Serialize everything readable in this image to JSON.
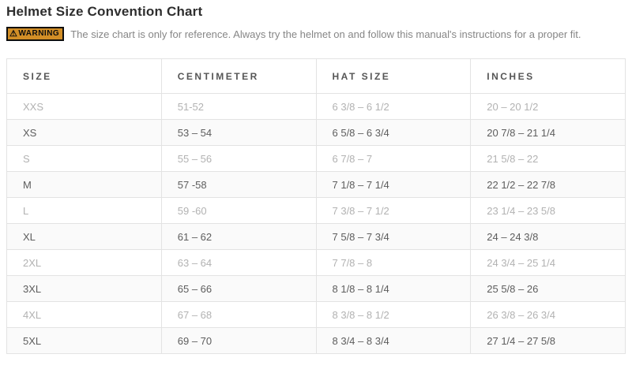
{
  "page": {
    "title": "Helmet Size Convention Chart",
    "warning": {
      "badge_label": "WARNING",
      "triangle_icon": "⚠",
      "text": "The size chart is only for reference. Always try the helmet on and follow this manual's instructions for a proper fit."
    }
  },
  "colors": {
    "badge_bg": "#d28e26",
    "badge_border": "#0d0d0d",
    "header_text": "#565656",
    "row_light_text": "#b2b2b2",
    "row_dark_text": "#5d5d5d",
    "stripe_bg": "#fafafa",
    "table_border": "#e3e3e3"
  },
  "table": {
    "headers": [
      "SIZE",
      "CENTIMETER",
      "HAT SIZE",
      "INCHES"
    ],
    "rows": [
      {
        "size": "XXS",
        "centimeter": "51-52",
        "hat_size": "6 3/8 – 6 1/2",
        "inches": "20 – 20 1/2"
      },
      {
        "size": "XS",
        "centimeter": "53 – 54",
        "hat_size": "6 5/8 – 6 3/4",
        "inches": "20 7/8 – 21 1/4"
      },
      {
        "size": "S",
        "centimeter": "55 – 56",
        "hat_size": "6 7/8 – 7",
        "inches": "21 5/8 – 22"
      },
      {
        "size": "M",
        "centimeter": "57 -58",
        "hat_size": "7 1/8 – 7 1/4",
        "inches": "22 1/2 – 22 7/8"
      },
      {
        "size": "L",
        "centimeter": "59 -60",
        "hat_size": "7 3/8 – 7 1/2",
        "inches": "23 1/4 – 23 5/8"
      },
      {
        "size": "XL",
        "centimeter": "61 – 62",
        "hat_size": "7 5/8 – 7 3/4",
        "inches": "24 – 24 3/8"
      },
      {
        "size": "2XL",
        "centimeter": "63 – 64",
        "hat_size": "7 7/8 – 8",
        "inches": "24 3/4 – 25 1/4"
      },
      {
        "size": "3XL",
        "centimeter": "65 – 66",
        "hat_size": "8 1/8 – 8 1/4",
        "inches": "25 5/8 – 26"
      },
      {
        "size": "4XL",
        "centimeter": "67 – 68",
        "hat_size": "8 3/8 – 8 1/2",
        "inches": "26 3/8 – 26 3/4"
      },
      {
        "size": "5XL",
        "centimeter": "69 – 70",
        "hat_size": "8 3/4 – 8 3/4",
        "inches": "27 1/4 – 27 5/8"
      }
    ]
  }
}
